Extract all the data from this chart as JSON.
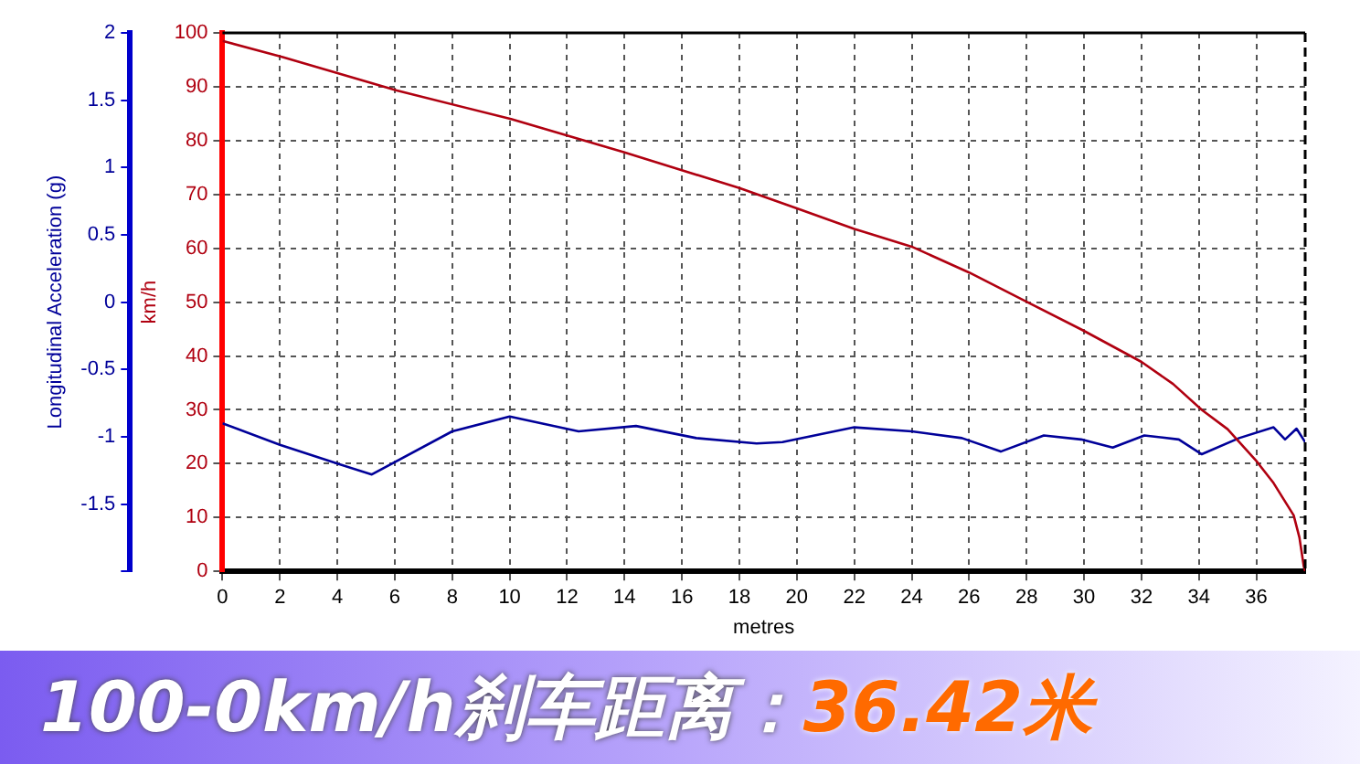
{
  "chart_data": {
    "type": "line",
    "title": "100-0km/h刹车距离：",
    "annotations": [
      "36.42米"
    ],
    "xlabel": "metres",
    "ylabel": "km/h",
    "y2label": "Longitudinal Acceleration (g)",
    "xlim": [
      0,
      37.7
    ],
    "xticks": [
      0,
      2,
      4,
      6,
      8,
      10,
      12,
      14,
      16,
      18,
      20,
      22,
      24,
      26,
      28,
      30,
      32,
      34,
      36
    ],
    "ylim": [
      0,
      100
    ],
    "yticks": [
      0,
      10,
      20,
      30,
      40,
      50,
      60,
      70,
      80,
      90,
      100
    ],
    "y2lim": [
      -2,
      2
    ],
    "y2ticks": [
      {
        "value": -2,
        "label": null
      },
      -1.5,
      -1,
      -0.5,
      0,
      0.5,
      1,
      1.5,
      2
    ],
    "grid": true,
    "legend": false,
    "marker": "none",
    "line_style": "solid",
    "series": [
      {
        "color": "#b00010",
        "x": [
          0,
          2.1,
          6.07,
          10.05,
          14.0,
          18.0,
          20.0,
          22.0,
          24.0,
          26.0,
          27.95,
          29.95,
          32.0,
          33.1,
          34.1,
          35.0,
          36.0,
          36.6,
          37.3,
          37.5,
          37.65,
          37.7
        ],
        "values": [
          98.5,
          95.5,
          89.3,
          84.0,
          77.8,
          71.2,
          67.4,
          63.6,
          60.3,
          55.5,
          50.2,
          44.8,
          38.9,
          34.8,
          30.0,
          26.4,
          20.5,
          16.4,
          10.4,
          6.3,
          1,
          0
        ]
      },
      {
        "color": "#000099",
        "axis": "y2",
        "x": [
          0,
          2.0,
          4.0,
          5.2,
          8.0,
          10.0,
          12.4,
          14.4,
          16.5,
          18.6,
          19.5,
          22.0,
          24.0,
          25.75,
          27.1,
          28.6,
          29.9,
          31.0,
          32.1,
          33.3,
          34.1,
          35.4,
          36.6,
          37.0,
          37.4,
          37.7
        ],
        "values": [
          -0.9,
          -1.06,
          -1.2,
          -1.28,
          -0.96,
          -0.85,
          -0.96,
          -0.92,
          -1.01,
          -1.05,
          -1.04,
          -0.93,
          -0.96,
          -1.01,
          -1.11,
          -0.99,
          -1.02,
          -1.08,
          -0.99,
          -1.02,
          -1.13,
          -1.01,
          -0.93,
          -1.02,
          -0.94,
          -1.04
        ]
      }
    ]
  }
}
